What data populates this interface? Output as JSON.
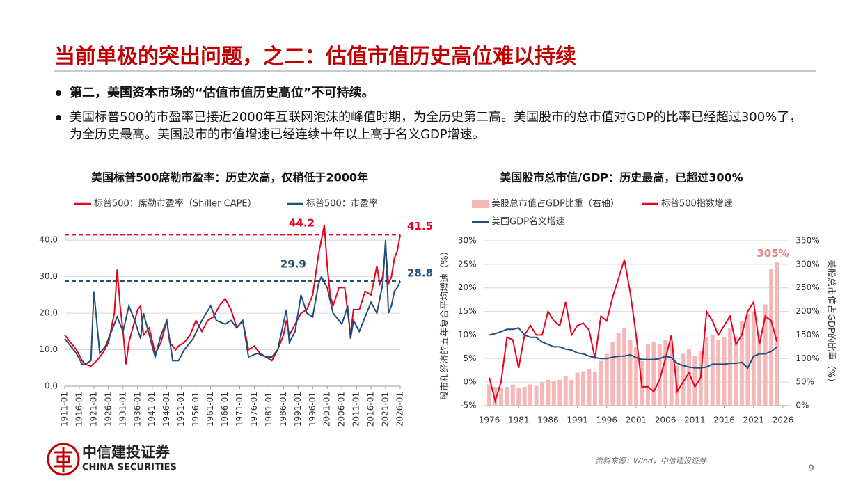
{
  "title": "当前单极的突出问题，之二：估值市值历史高位难以持续",
  "bullets": [
    "第二，美国资本市场的“估值市值历史高位”不可持续。",
    "美国标普500的市盈率已接近2000年互联网泡沫的峰值时期，为全历史第二高。美国股市的总市值对GDP的比率已经超过300%了，为全历史最高。美国股市的市值增速已经连续十年以上高于名义GDP增速。"
  ],
  "chart_data": [
    {
      "type": "line",
      "title": "美国标普500席勒市盈率：历史次高，仅稍低于2000年",
      "grid": true,
      "xlim": [
        1911,
        2026
      ],
      "xticks": [
        {
          "value": 1911,
          "label": "1911-01"
        },
        {
          "value": 1916,
          "label": "1916-01"
        },
        {
          "value": 1921,
          "label": "1921-01"
        },
        {
          "value": 1926,
          "label": "1926-01"
        },
        {
          "value": 1931,
          "label": "1931-01"
        },
        {
          "value": 1936,
          "label": "1936-01"
        },
        {
          "value": 1941,
          "label": "1941-01"
        },
        {
          "value": 1946,
          "label": "1946-01"
        },
        {
          "value": 1951,
          "label": "1951-01"
        },
        {
          "value": 1956,
          "label": "1956-01"
        },
        {
          "value": 1961,
          "label": "1961-01"
        },
        {
          "value": 1966,
          "label": "1966-01"
        },
        {
          "value": 1971,
          "label": "1971-01"
        },
        {
          "value": 1976,
          "label": "1976-01"
        },
        {
          "value": 1981,
          "label": "1981-01"
        },
        {
          "value": 1986,
          "label": "1986-01"
        },
        {
          "value": 1991,
          "label": "1991-01"
        },
        {
          "value": 1996,
          "label": "1996-01"
        },
        {
          "value": 2001,
          "label": "2001-01"
        },
        {
          "value": 2006,
          "label": "2006-01"
        },
        {
          "value": 2011,
          "label": "2011-01"
        },
        {
          "value": 2016,
          "label": "2016-01"
        },
        {
          "value": 2021,
          "label": "2021-01"
        },
        {
          "value": 2026,
          "label": "2026-01"
        }
      ],
      "ylim": [
        0,
        45
      ],
      "yticks": [
        {
          "value": 0,
          "label": "0.0"
        },
        {
          "value": 10,
          "label": "10.0"
        },
        {
          "value": 20,
          "label": "20.0"
        },
        {
          "value": 30,
          "label": "30.0"
        },
        {
          "value": 40,
          "label": "40.0"
        }
      ],
      "series": [
        {
          "name": "标普500：席勒市盈率（Shiller CAPE）",
          "color": "#e8001c",
          "x": [
            1911,
            1913,
            1915,
            1917,
            1918,
            1920,
            1922,
            1924,
            1926,
            1928,
            1929,
            1930,
            1931,
            1932,
            1933,
            1936,
            1937,
            1938,
            1940,
            1942,
            1944,
            1946,
            1947,
            1949,
            1950,
            1952,
            1954,
            1956,
            1958,
            1960,
            1962,
            1964,
            1966,
            1968,
            1970,
            1972,
            1974,
            1976,
            1978,
            1980,
            1982,
            1984,
            1986,
            1987,
            1988,
            1990,
            1992,
            1994,
            1996,
            1998,
            2000,
            2001,
            2002,
            2003,
            2005,
            2007,
            2009,
            2010,
            2012,
            2014,
            2016,
            2018,
            2019,
            2020,
            2021,
            2022,
            2023,
            2024,
            2025,
            2026
          ],
          "values": [
            14,
            12,
            10,
            7,
            6,
            5.5,
            7,
            9,
            12,
            20,
            32,
            22,
            15,
            6,
            12,
            21,
            22,
            14,
            16,
            9,
            12,
            18,
            12,
            10,
            11,
            12,
            14,
            18,
            15,
            18,
            19,
            22,
            24,
            21,
            16,
            18,
            10,
            11,
            9,
            8,
            7,
            10,
            14,
            18,
            14,
            17,
            20,
            21,
            25,
            36,
            44.2,
            33,
            25,
            22,
            27,
            27,
            14,
            21,
            21,
            26,
            25,
            33,
            28,
            30,
            38,
            28,
            30,
            35,
            37,
            41.5
          ]
        },
        {
          "name": "标普500：市盈率",
          "color": "#1f4e79",
          "x": [
            1911,
            1913,
            1915,
            1917,
            1918,
            1920,
            1921,
            1923,
            1925,
            1927,
            1929,
            1931,
            1933,
            1935,
            1937,
            1938,
            1940,
            1942,
            1944,
            1946,
            1948,
            1950,
            1952,
            1955,
            1958,
            1961,
            1963,
            1966,
            1968,
            1970,
            1972,
            1974,
            1977,
            1980,
            1982,
            1984,
            1987,
            1988,
            1990,
            1992,
            1994,
            1996,
            1998,
            1999,
            2001,
            2003,
            2006,
            2008,
            2009,
            2010,
            2012,
            2014,
            2016,
            2018,
            2020,
            2021,
            2022,
            2023,
            2024,
            2025,
            2026
          ],
          "values": [
            13,
            11,
            9,
            6,
            6,
            7,
            26,
            9,
            11,
            15,
            19,
            15,
            22,
            18,
            13,
            20,
            14,
            8,
            14,
            18,
            7,
            7,
            10,
            13,
            18,
            22,
            18,
            17,
            18,
            16,
            18,
            8,
            9,
            8,
            8,
            10,
            21,
            12,
            15,
            25,
            20,
            19,
            28,
            30,
            27,
            20,
            17,
            22,
            13,
            18,
            15,
            19,
            23,
            20,
            28,
            40,
            20,
            22,
            26,
            27,
            28.8
          ]
        }
      ],
      "reference_lines": [
        {
          "value": 41.5,
          "color": "#e8001c"
        },
        {
          "value": 28.8,
          "color": "#1f4e79"
        }
      ],
      "annotations": [
        {
          "x": 2000,
          "value": 44.2,
          "color": "#e8001c"
        },
        {
          "x": 2026,
          "value": 41.5,
          "color": "#e8001c"
        },
        {
          "x": 1999,
          "value": 29.9,
          "color": "#1f4e79"
        },
        {
          "x": 2026,
          "value": 28.8,
          "color": "#1f4e79"
        }
      ]
    },
    {
      "type": "combo",
      "title": "美国股市总市值/GDP：历史最高，已超过300%",
      "grid": true,
      "ylabel": "股市和经济的五年复合平均增速（%）",
      "y2label": "美股总市值占GDP的比重（%）",
      "x": [
        1976,
        1977,
        1978,
        1979,
        1980,
        1981,
        1982,
        1983,
        1984,
        1985,
        1986,
        1987,
        1988,
        1989,
        1990,
        1991,
        1992,
        1993,
        1994,
        1995,
        1996,
        1997,
        1998,
        1999,
        2000,
        2001,
        2002,
        2003,
        2004,
        2005,
        2006,
        2007,
        2008,
        2009,
        2010,
        2011,
        2012,
        2013,
        2014,
        2015,
        2016,
        2017,
        2018,
        2019,
        2020,
        2021,
        2022,
        2023,
        2024,
        2025
      ],
      "xlim": [
        1975,
        2027
      ],
      "xticks": [
        1976,
        1981,
        1986,
        1991,
        1996,
        2001,
        2006,
        2011,
        2016,
        2021,
        2026
      ],
      "ylim": [
        -5,
        30
      ],
      "yticks": [
        {
          "value": -5,
          "label": "-5%"
        },
        {
          "value": 0,
          "label": "0%"
        },
        {
          "value": 5,
          "label": "5%"
        },
        {
          "value": 10,
          "label": "10%"
        },
        {
          "value": 15,
          "label": "15%"
        },
        {
          "value": 20,
          "label": "20%"
        },
        {
          "value": 25,
          "label": "25%"
        },
        {
          "value": 30,
          "label": "30%"
        }
      ],
      "y2lim": [
        0,
        350
      ],
      "y2ticks": [
        {
          "value": 0,
          "label": "0%"
        },
        {
          "value": 50,
          "label": "50%"
        },
        {
          "value": 100,
          "label": "100%"
        },
        {
          "value": 150,
          "label": "150%"
        },
        {
          "value": 200,
          "label": "200%"
        },
        {
          "value": 250,
          "label": "250%"
        },
        {
          "value": 300,
          "label": "300%"
        },
        {
          "value": 350,
          "label": "350%"
        }
      ],
      "series": [
        {
          "name": "美股总市值占GDP比重（右轴）",
          "type": "bar",
          "axis": "y2",
          "color": "#f6b7b9",
          "values": [
            45,
            40,
            38,
            40,
            45,
            38,
            40,
            45,
            42,
            50,
            55,
            53,
            55,
            62,
            55,
            70,
            73,
            78,
            72,
            95,
            110,
            135,
            155,
            165,
            140,
            125,
            95,
            130,
            135,
            130,
            140,
            135,
            85,
            110,
            120,
            105,
            115,
            145,
            150,
            140,
            145,
            165,
            145,
            180,
            195,
            200,
            150,
            215,
            290,
            305
          ],
          "value_labels": [
            null,
            null,
            null,
            null,
            null,
            null,
            null,
            null,
            null,
            null,
            null,
            null,
            null,
            null,
            null,
            null,
            null,
            null,
            null,
            null,
            null,
            null,
            null,
            null,
            null,
            null,
            null,
            null,
            null,
            null,
            null,
            null,
            null,
            null,
            null,
            null,
            null,
            null,
            null,
            null,
            null,
            null,
            null,
            null,
            null,
            null,
            null,
            null,
            null,
            "305%"
          ]
        },
        {
          "name": "标普500指数增速",
          "type": "line",
          "color": "#e8001c",
          "values": [
            1,
            -4,
            0,
            9.5,
            9,
            3,
            10,
            12,
            10,
            10,
            15,
            13,
            12,
            17,
            10,
            12,
            12.5,
            11,
            5,
            14,
            13,
            18,
            22,
            26,
            19,
            10,
            -1,
            -1,
            -2,
            0.5,
            5,
            10,
            -2,
            0,
            2,
            -1,
            1,
            15,
            13,
            10,
            12,
            14,
            8,
            10,
            15,
            17,
            8,
            14,
            13,
            8.5
          ]
        },
        {
          "name": "美国GDP名义增速",
          "type": "line",
          "color": "#1f4e79",
          "values": [
            10,
            10.3,
            10.7,
            11.2,
            11.2,
            11.5,
            10,
            9.5,
            9.5,
            8.5,
            8,
            7.5,
            7.5,
            7,
            6.8,
            6.2,
            6,
            5.5,
            5.2,
            5,
            5,
            5.3,
            5.5,
            5.5,
            5.8,
            5.2,
            4.8,
            4.8,
            4.8,
            5,
            5.5,
            5.2,
            4,
            3.5,
            3.2,
            3,
            3,
            3.2,
            3.8,
            3.8,
            3.8,
            4,
            4,
            4.2,
            3,
            5.5,
            6,
            6,
            6.5,
            7.5
          ]
        }
      ]
    }
  ],
  "logo": {
    "name": "中信建投证券",
    "name_en": "CHINA SECURITIES"
  },
  "source": "资料来源：Wind，中信建投证券",
  "page_number": 9
}
